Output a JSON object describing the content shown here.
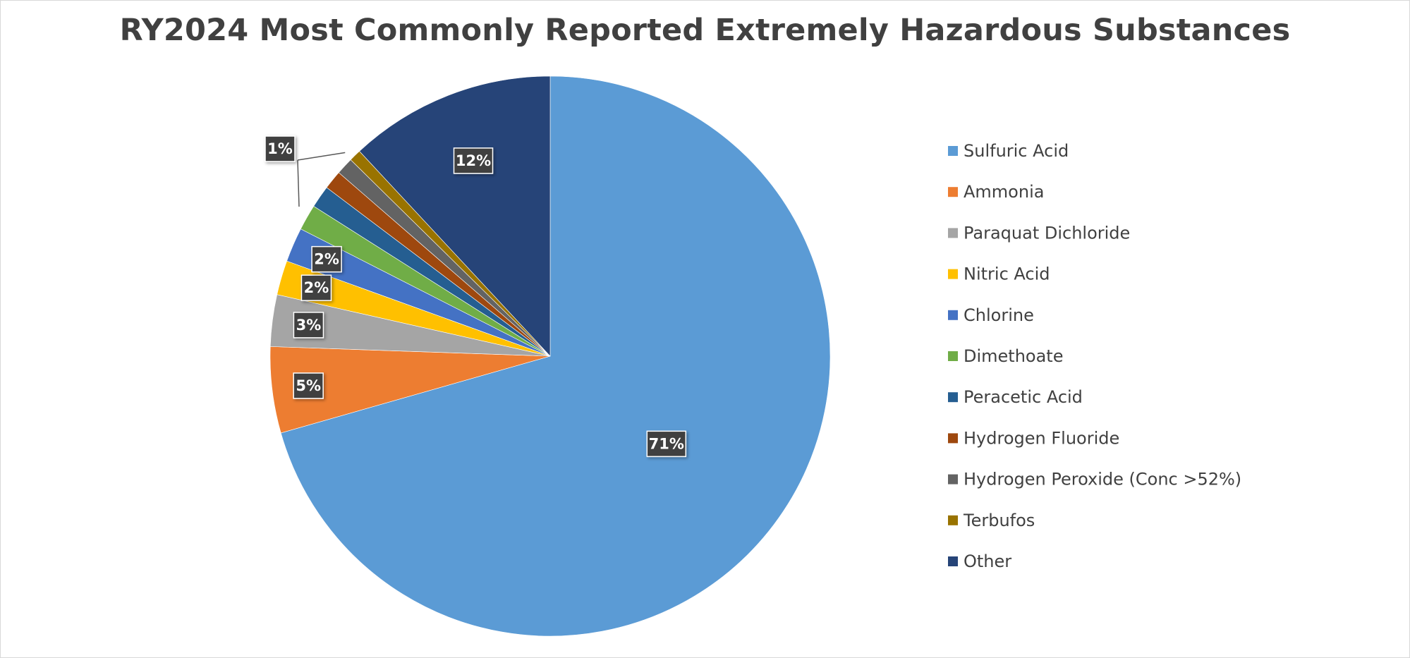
{
  "chart_data": {
    "type": "pie",
    "title": "RY2024 Most Commonly Reported Extremely Hazardous Substances",
    "categories": [
      "Sulfuric Acid",
      "Ammonia",
      "Paraquat Dichloride",
      "Nitric Acid",
      "Chlorine",
      "Dimethoate",
      "Peracetic Acid",
      "Hydrogen Fluoride",
      "Hydrogen Peroxide (Conc >52%)",
      "Terbufos",
      "Other"
    ],
    "values": [
      71,
      5,
      3,
      2,
      2,
      1.5,
      1.3,
      1.1,
      1.0,
      0.7,
      12
    ],
    "data_labels": [
      "71%",
      "5%",
      "3%",
      "2%",
      "2%",
      "",
      "",
      "",
      "",
      "1%",
      "12%"
    ],
    "colors": [
      "#5b9bd5",
      "#ed7d31",
      "#a5a5a5",
      "#ffc000",
      "#4472c4",
      "#70ad47",
      "#255e91",
      "#9e480e",
      "#636363",
      "#997300",
      "#264478"
    ],
    "legend_position": "right",
    "start_angle_deg": 0,
    "direction": "clockwise"
  }
}
